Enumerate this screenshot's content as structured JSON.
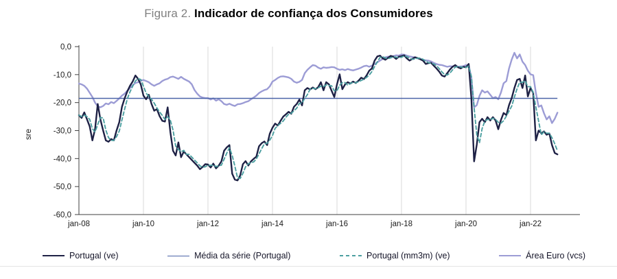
{
  "figure": {
    "title_prefix": "Figura 2.",
    "title_main": "Indicador de confiança dos Consumidores"
  },
  "chart_data": {
    "type": "line",
    "title": "Figura 2. Indicador de confiança dos Consumidores",
    "ylabel": "sre",
    "ylim": [
      -60,
      0
    ],
    "y_ticks": [
      "0,0",
      "-10,0",
      "-20,0",
      "-30,0",
      "-40,0",
      "-50,0",
      "-60,0"
    ],
    "x_ticks": [
      "jan-08",
      "jan-10",
      "jan-12",
      "jan-14",
      "jan-16",
      "jan-18",
      "jan-20",
      "jan-22"
    ],
    "frequency": "monthly",
    "x_start": "jan-08",
    "x_end": "nov-22",
    "grid": "vertical light gridlines at january of even years",
    "legend_position": "bottom",
    "colors": {
      "grid": "#d9d9d9",
      "axis": "#3f3f3f",
      "tick_text": "#1a1a1a",
      "title_prefix": "#808080"
    },
    "series": [
      {
        "name": "Portugal (ve)",
        "color": "#1e2145",
        "style": "solid",
        "values": [
          -24.5,
          -25.5,
          -23.5,
          -26.0,
          -28.5,
          -33.5,
          -29.5,
          -20.5,
          -26.0,
          -30.0,
          -33.5,
          -34.0,
          -33.0,
          -33.5,
          -30.0,
          -27.0,
          -21.5,
          -18.5,
          -16.0,
          -14.0,
          -12.5,
          -10.3,
          -11.5,
          -13.5,
          -17.5,
          -18.8,
          -17.2,
          -20.5,
          -22.9,
          -22.3,
          -24.8,
          -26.5,
          -26.8,
          -21.7,
          -30.5,
          -37.2,
          -38.9,
          -34.2,
          -39.5,
          -37.5,
          -38.5,
          -39.5,
          -40.5,
          -41.5,
          -42.5,
          -43.8,
          -43.0,
          -42.0,
          -42.1,
          -43.2,
          -41.8,
          -43.5,
          -42.5,
          -41.0,
          -37.2,
          -36.0,
          -35.2,
          -45.4,
          -47.5,
          -47.8,
          -46.0,
          -42.0,
          -40.9,
          -42.5,
          -41.0,
          -40.1,
          -39.3,
          -35.6,
          -34.5,
          -33.9,
          -35.2,
          -31.1,
          -29.0,
          -27.5,
          -28.2,
          -26.5,
          -25.0,
          -24.2,
          -23.3,
          -24.0,
          -21.5,
          -20.5,
          -18.9,
          -21.0,
          -15.6,
          -14.8,
          -15.3,
          -14.6,
          -15.2,
          -14.5,
          -12.7,
          -15.6,
          -12.7,
          -13.5,
          -15.8,
          -18.0,
          -13.5,
          -9.9,
          -15.2,
          -13.5,
          -12.7,
          -13.2,
          -12.5,
          -13.0,
          -12.2,
          -11.1,
          -11.6,
          -10.3,
          -8.6,
          -7.8,
          -5.0,
          -3.5,
          -3.2,
          -4.2,
          -4.7,
          -4.0,
          -3.3,
          -3.6,
          -4.4,
          -3.6,
          -3.4,
          -3.1,
          -4.2,
          -5.0,
          -4.4,
          -3.8,
          -4.1,
          -4.5,
          -5.0,
          -6.2,
          -5.9,
          -5.8,
          -6.8,
          -7.8,
          -8.9,
          -10.3,
          -10.7,
          -9.5,
          -8.2,
          -7.2,
          -6.6,
          -7.4,
          -7.8,
          -7.2,
          -7.4,
          -6.2,
          -18.4,
          -41.0,
          -35.0,
          -27.0,
          -25.8,
          -27.0,
          -25.2,
          -26.4,
          -25.2,
          -26.4,
          -29.5,
          -26.2,
          -23.7,
          -24.5,
          -20.9,
          -18.4,
          -14.8,
          -11.9,
          -11.5,
          -14.8,
          -10.3,
          -17.8,
          -14.8,
          -16.5,
          -33.5,
          -30.0,
          -31.0,
          -30.3,
          -31.5,
          -31.0,
          -35.2,
          -38.0,
          -38.5
        ]
      },
      {
        "name": "Média da série (Portugal)",
        "color": "#4a63a8",
        "style": "horizontal-line",
        "value": -18.5
      },
      {
        "name": "Portugal (mm3m) (ve)",
        "color": "#4b9fa0",
        "style": "dashed",
        "derivation": "3-month moving average of Portugal (ve)"
      },
      {
        "name": "Área Euro (vcs)",
        "color": "#9c9cd5",
        "style": "solid",
        "values": [
          -13.2,
          -13.5,
          -14.0,
          -15.0,
          -16.5,
          -18.0,
          -20.0,
          -21.3,
          -21.7,
          -21.2,
          -20.3,
          -20.6,
          -19.8,
          -20.2,
          -19.4,
          -18.5,
          -17.5,
          -16.8,
          -15.8,
          -14.8,
          -13.8,
          -13.0,
          -12.7,
          -12.2,
          -11.9,
          -12.3,
          -12.7,
          -13.5,
          -14.0,
          -13.5,
          -13.1,
          -12.3,
          -11.8,
          -11.5,
          -10.9,
          -10.7,
          -11.1,
          -11.5,
          -10.8,
          -11.5,
          -12.0,
          -12.5,
          -13.5,
          -15.5,
          -16.8,
          -17.8,
          -18.2,
          -18.4,
          -18.4,
          -18.9,
          -18.5,
          -19.3,
          -18.8,
          -19.5,
          -20.5,
          -20.8,
          -20.4,
          -20.9,
          -21.2,
          -20.6,
          -20.5,
          -20.2,
          -19.8,
          -19.5,
          -18.8,
          -18.2,
          -17.5,
          -16.6,
          -16.0,
          -15.5,
          -15.2,
          -14.2,
          -12.5,
          -11.9,
          -11.2,
          -10.7,
          -10.6,
          -10.8,
          -11.0,
          -11.5,
          -12.5,
          -12.9,
          -12.6,
          -11.9,
          -9.5,
          -8.3,
          -7.4,
          -6.6,
          -6.8,
          -7.5,
          -7.9,
          -7.4,
          -7.6,
          -7.5,
          -7.3,
          -7.4,
          -7.9,
          -8.3,
          -8.1,
          -8.4,
          -8.0,
          -8.3,
          -8.5,
          -8.2,
          -7.9,
          -7.5,
          -7.0,
          -6.8,
          -7.2,
          -6.8,
          -6.2,
          -5.6,
          -5.0,
          -4.4,
          -3.8,
          -3.6,
          -3.5,
          -3.4,
          -3.1,
          -3.2,
          -2.8,
          -2.9,
          -3.2,
          -3.5,
          -3.7,
          -3.9,
          -4.2,
          -4.4,
          -4.7,
          -4.9,
          -5.0,
          -5.3,
          -5.8,
          -6.2,
          -6.5,
          -6.6,
          -6.9,
          -7.2,
          -7.0,
          -7.1,
          -6.8,
          -7.2,
          -7.1,
          -7.0,
          -6.6,
          -6.6,
          -11.1,
          -21.7,
          -20.9,
          -17.6,
          -15.6,
          -16.4,
          -16.0,
          -17.2,
          -18.4,
          -18.0,
          -18.8,
          -16.4,
          -13.1,
          -12.3,
          -7.8,
          -4.6,
          -2.2,
          -4.2,
          -2.8,
          -5.4,
          -6.6,
          -8.6,
          -9.9,
          -10.2,
          -16.5,
          -21.5,
          -21.0,
          -23.8,
          -26.0,
          -24.9,
          -27.3,
          -25.8,
          -23.6
        ]
      }
    ]
  }
}
